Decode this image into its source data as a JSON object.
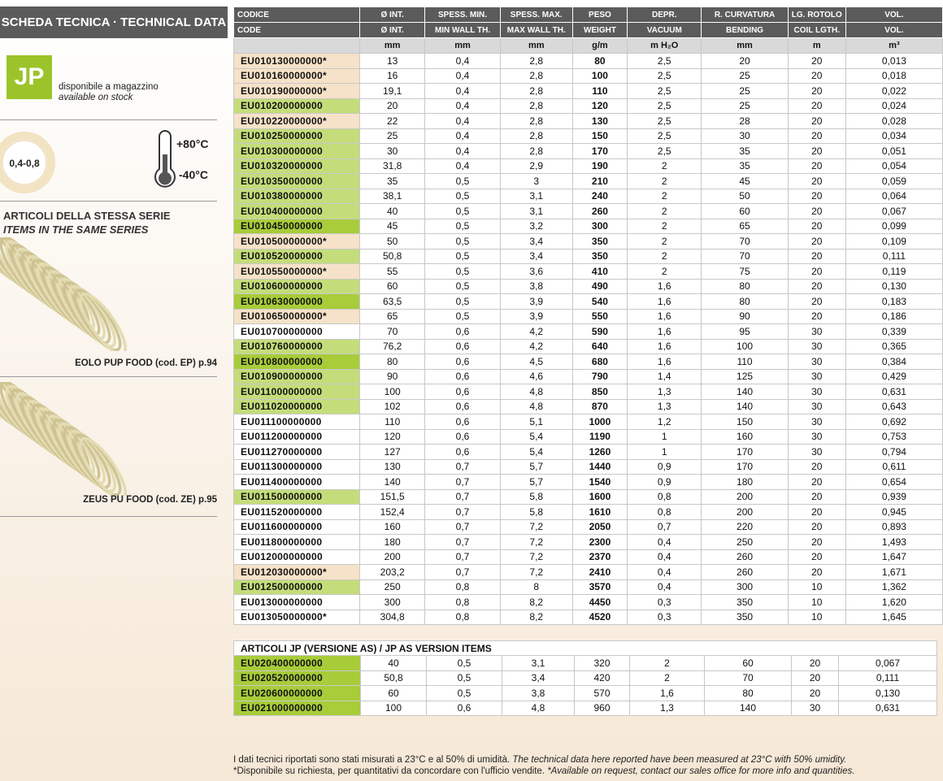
{
  "sidebar": {
    "title": "SCHEDA TECNICA · TECHNICAL DATA",
    "logo": "JP",
    "stock_it": "disponibile a magazzino",
    "stock_en": "available on stock",
    "thickness": "0,4-0,8",
    "temp_max": "+80°C",
    "temp_min": "-40°C",
    "series_it": "ARTICOLI DELLA STESSA SERIE",
    "series_en": "ITEMS IN THE SAME SERIES",
    "item1": "EOLO PUP FOOD (cod. EP) p.94",
    "item2": "ZEUS PU FOOD (cod. ZE) p.95"
  },
  "table": {
    "header1": [
      "CODICE",
      "Ø INT.",
      "SPESS. MIN.",
      "SPESS. MAX.",
      "PESO",
      "DEPR.",
      "R. CURVATURA",
      "LG. ROTOLO",
      "VOL."
    ],
    "header2": [
      "CODE",
      "Ø INT.",
      "MIN WALL TH.",
      "MAX WALL TH.",
      "WEIGHT",
      "VACUUM",
      "BENDING",
      "COIL LGTH.",
      "VOL."
    ],
    "units": [
      "mm",
      "mm",
      "mm",
      "g/m",
      "m H₂O",
      "mm",
      "m",
      "m³"
    ],
    "rows": [
      [
        "EU010130000000*",
        "13",
        "0,4",
        "2,8",
        "80",
        "2,5",
        "20",
        "20",
        "0,013"
      ],
      [
        "EU010160000000*",
        "16",
        "0,4",
        "2,8",
        "100",
        "2,5",
        "25",
        "20",
        "0,018"
      ],
      [
        "EU010190000000*",
        "19,1",
        "0,4",
        "2,8",
        "110",
        "2,5",
        "25",
        "20",
        "0,022"
      ],
      [
        "EU010200000000",
        "20",
        "0,4",
        "2,8",
        "120",
        "2,5",
        "25",
        "20",
        "0,024"
      ],
      [
        "EU010220000000*",
        "22",
        "0,4",
        "2,8",
        "130",
        "2,5",
        "28",
        "20",
        "0,028"
      ],
      [
        "EU010250000000",
        "25",
        "0,4",
        "2,8",
        "150",
        "2,5",
        "30",
        "20",
        "0,034"
      ],
      [
        "EU010300000000",
        "30",
        "0,4",
        "2,8",
        "170",
        "2,5",
        "35",
        "20",
        "0,051"
      ],
      [
        "EU010320000000",
        "31,8",
        "0,4",
        "2,9",
        "190",
        "2",
        "35",
        "20",
        "0,054"
      ],
      [
        "EU010350000000",
        "35",
        "0,5",
        "3",
        "210",
        "2",
        "45",
        "20",
        "0,059"
      ],
      [
        "EU010380000000",
        "38,1",
        "0,5",
        "3,1",
        "240",
        "2",
        "50",
        "20",
        "0,064"
      ],
      [
        "EU010400000000",
        "40",
        "0,5",
        "3,1",
        "260",
        "2",
        "60",
        "20",
        "0,067"
      ],
      [
        "EU010450000000",
        "45",
        "0,5",
        "3,2",
        "300",
        "2",
        "65",
        "20",
        "0,099"
      ],
      [
        "EU010500000000*",
        "50",
        "0,5",
        "3,4",
        "350",
        "2",
        "70",
        "20",
        "0,109"
      ],
      [
        "EU010520000000",
        "50,8",
        "0,5",
        "3,4",
        "350",
        "2",
        "70",
        "20",
        "0,111"
      ],
      [
        "EU010550000000*",
        "55",
        "0,5",
        "3,6",
        "410",
        "2",
        "75",
        "20",
        "0,119"
      ],
      [
        "EU010600000000",
        "60",
        "0,5",
        "3,8",
        "490",
        "1,6",
        "80",
        "20",
        "0,130"
      ],
      [
        "EU010630000000",
        "63,5",
        "0,5",
        "3,9",
        "540",
        "1,6",
        "80",
        "20",
        "0,183"
      ],
      [
        "EU010650000000*",
        "65",
        "0,5",
        "3,9",
        "550",
        "1,6",
        "90",
        "20",
        "0,186"
      ],
      [
        "EU010700000000",
        "70",
        "0,6",
        "4,2",
        "590",
        "1,6",
        "95",
        "30",
        "0,339"
      ],
      [
        "EU010760000000",
        "76,2",
        "0,6",
        "4,2",
        "640",
        "1,6",
        "100",
        "30",
        "0,365"
      ],
      [
        "EU010800000000",
        "80",
        "0,6",
        "4,5",
        "680",
        "1,6",
        "110",
        "30",
        "0,384"
      ],
      [
        "EU010900000000",
        "90",
        "0,6",
        "4,6",
        "790",
        "1,4",
        "125",
        "30",
        "0,429"
      ],
      [
        "EU011000000000",
        "100",
        "0,6",
        "4,8",
        "850",
        "1,3",
        "140",
        "30",
        "0,631"
      ],
      [
        "EU011020000000",
        "102",
        "0,6",
        "4,8",
        "870",
        "1,3",
        "140",
        "30",
        "0,643"
      ],
      [
        "EU011100000000",
        "110",
        "0,6",
        "5,1",
        "1000",
        "1,2",
        "150",
        "30",
        "0,692"
      ],
      [
        "EU011200000000",
        "120",
        "0,6",
        "5,4",
        "1190",
        "1",
        "160",
        "30",
        "0,753"
      ],
      [
        "EU011270000000",
        "127",
        "0,6",
        "5,4",
        "1260",
        "1",
        "170",
        "30",
        "0,794"
      ],
      [
        "EU011300000000",
        "130",
        "0,7",
        "5,7",
        "1440",
        "0,9",
        "170",
        "20",
        "0,611"
      ],
      [
        "EU011400000000",
        "140",
        "0,7",
        "5,7",
        "1540",
        "0,9",
        "180",
        "20",
        "0,654"
      ],
      [
        "EU011500000000",
        "151,5",
        "0,7",
        "5,8",
        "1600",
        "0,8",
        "200",
        "20",
        "0,939"
      ],
      [
        "EU011520000000",
        "152,4",
        "0,7",
        "5,8",
        "1610",
        "0,8",
        "200",
        "20",
        "0,945"
      ],
      [
        "EU011600000000",
        "160",
        "0,7",
        "7,2",
        "2050",
        "0,7",
        "220",
        "20",
        "0,893"
      ],
      [
        "EU011800000000",
        "180",
        "0,7",
        "7,2",
        "2300",
        "0,4",
        "250",
        "20",
        "1,493"
      ],
      [
        "EU012000000000",
        "200",
        "0,7",
        "7,2",
        "2370",
        "0,4",
        "260",
        "20",
        "1,647"
      ],
      [
        "EU012030000000*",
        "203,2",
        "0,7",
        "7,2",
        "2410",
        "0,4",
        "260",
        "20",
        "1,671"
      ],
      [
        "EU012500000000",
        "250",
        "0,8",
        "8",
        "3570",
        "0,4",
        "300",
        "10",
        "1,362"
      ],
      [
        "EU013000000000",
        "300",
        "0,8",
        "8,2",
        "4450",
        "0,3",
        "350",
        "10",
        "1,620"
      ],
      [
        "EU013050000000*",
        "304,8",
        "0,8",
        "8,2",
        "4520",
        "0,3",
        "350",
        "10",
        "1,645"
      ]
    ],
    "row_colors": [
      "#f6e2c8",
      "#f6e2c8",
      "#f6e2c8",
      "#c4dd7a",
      "#f6e2c8",
      "#c4dd7a",
      "#c4dd7a",
      "#c4dd7a",
      "#c4dd7a",
      "#c4dd7a",
      "#c4dd7a",
      "#a8cc3a",
      "#f6e2c8",
      "#c4dd7a",
      "#f6e2c8",
      "#c4dd7a",
      "#a8cc3a",
      "#f6e2c8",
      "#ffffff",
      "#c4dd7a",
      "#a8cc3a",
      "#c4dd7a",
      "#c4dd7a",
      "#c4dd7a",
      "#ffffff",
      "#ffffff",
      "#ffffff",
      "#ffffff",
      "#ffffff",
      "#c4dd7a",
      "#ffffff",
      "#ffffff",
      "#ffffff",
      "#ffffff",
      "#f6e2c8",
      "#c4dd7a",
      "#ffffff",
      "#ffffff"
    ]
  },
  "table2": {
    "title": "ARTICOLI JP (VERSIONE AS) / JP AS VERSION ITEMS",
    "rows": [
      [
        "EU020400000000",
        "40",
        "0,5",
        "3,1",
        "320",
        "2",
        "60",
        "20",
        "0,067"
      ],
      [
        "EU020520000000",
        "50,8",
        "0,5",
        "3,4",
        "420",
        "2",
        "70",
        "20",
        "0,111"
      ],
      [
        "EU020600000000",
        "60",
        "0,5",
        "3,8",
        "570",
        "1,6",
        "80",
        "20",
        "0,130"
      ],
      [
        "EU021000000000",
        "100",
        "0,6",
        "4,8",
        "960",
        "1,3",
        "140",
        "30",
        "0,631"
      ]
    ],
    "row_colors": [
      "#a8cc3a",
      "#a8cc3a",
      "#a8cc3a",
      "#a8cc3a"
    ]
  },
  "footer": {
    "line1": "I dati tecnici riportati sono stati misurati a 23°C e al 50% di umidità.",
    "line1_en": "The technical data here reported have been measured at 23°C with 50% umidity.",
    "line2": "*Disponibile su richiesta, per quantitativi da concordare con l'ufficio vendite.",
    "line2_en": "*Available on request, contact our sales office for more info and quantities."
  }
}
